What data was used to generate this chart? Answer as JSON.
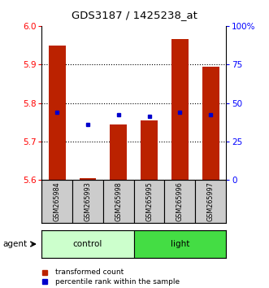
{
  "title": "GDS3187 / 1425238_at",
  "samples": [
    "GSM265984",
    "GSM265993",
    "GSM265998",
    "GSM265995",
    "GSM265996",
    "GSM265997"
  ],
  "transformed_counts": [
    5.95,
    5.605,
    5.745,
    5.755,
    5.965,
    5.895
  ],
  "percentile_ranks_left": [
    5.775,
    5.745,
    5.77,
    5.765,
    5.775,
    5.77
  ],
  "ylim_left": [
    5.6,
    6.0
  ],
  "ylim_right": [
    0,
    100
  ],
  "yticks_left": [
    5.6,
    5.7,
    5.8,
    5.9,
    6.0
  ],
  "yticks_right": [
    0,
    25,
    50,
    75,
    100
  ],
  "ytick_labels_right": [
    "0",
    "25",
    "50",
    "75",
    "100%"
  ],
  "bar_color": "#bb2200",
  "dot_color": "#0000cc",
  "bar_bottom": 5.6,
  "control_color": "#ccffcc",
  "light_color": "#44dd44",
  "gray_bg": "#cccccc",
  "grid_yticks": [
    5.7,
    5.8,
    5.9
  ]
}
